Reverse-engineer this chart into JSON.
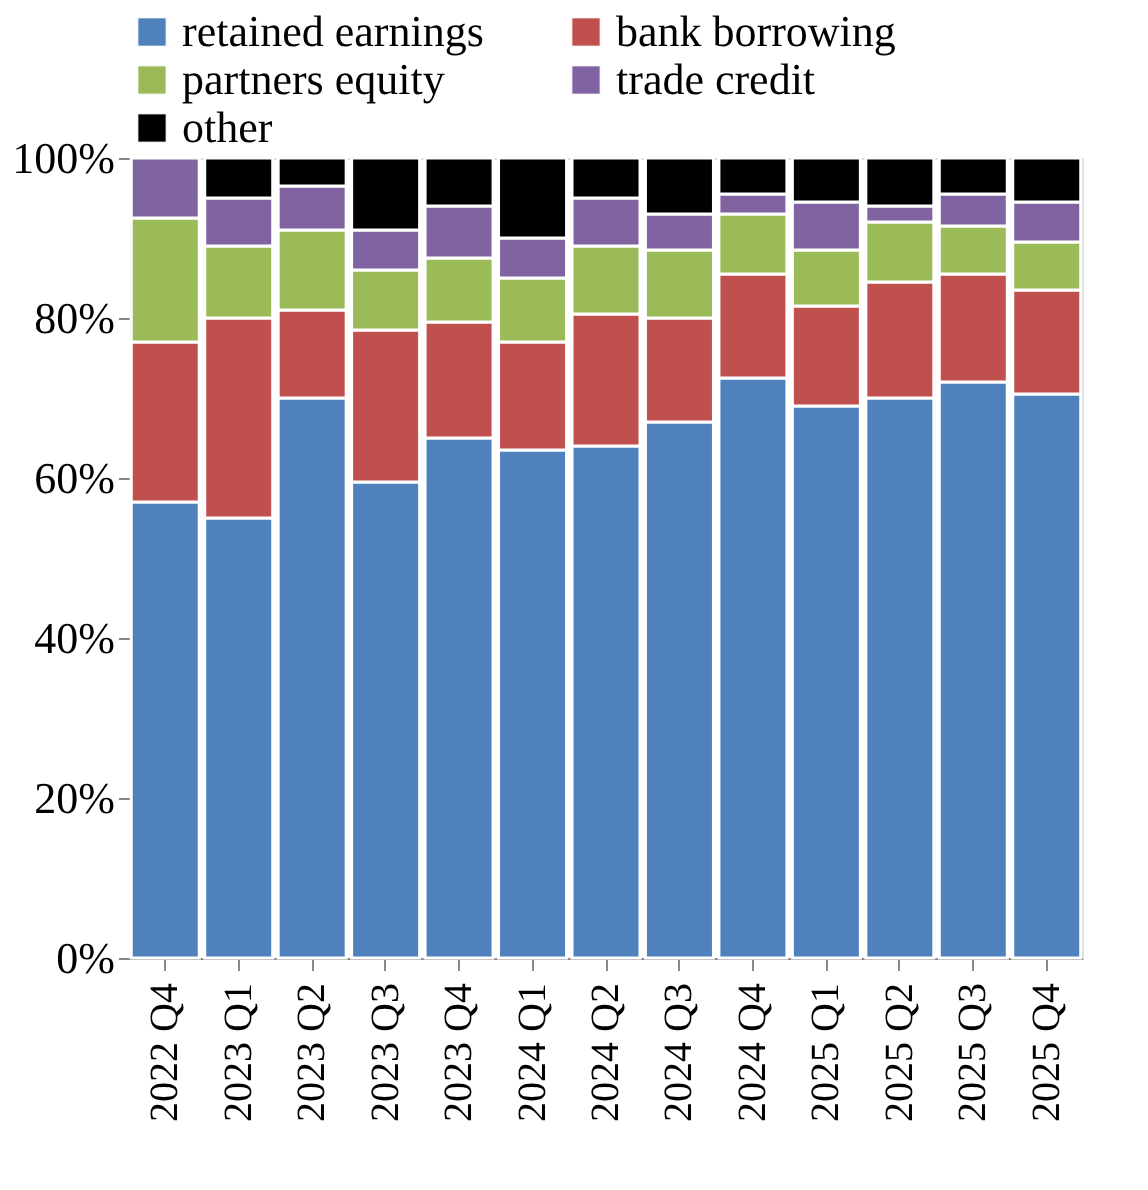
{
  "chart_data": {
    "type": "bar",
    "stacked": true,
    "legend": "top",
    "categories": [
      "2022 Q4",
      "2023 Q1",
      "2023 Q2",
      "2023 Q3",
      "2023 Q4",
      "2024 Q1",
      "2024 Q2",
      "2024 Q3",
      "2024 Q4",
      "2025 Q1",
      "2025 Q2",
      "2025 Q3",
      "2025 Q4"
    ],
    "series": [
      {
        "name": "retained earnings",
        "color": "#4f81bd",
        "values": [
          57,
          55,
          70,
          59.5,
          65,
          63.5,
          64,
          67,
          72.5,
          69,
          70,
          72,
          70.5
        ]
      },
      {
        "name": "bank borrowing",
        "color": "#c0504d",
        "values": [
          20,
          25,
          11,
          19,
          14.5,
          13.5,
          16.5,
          13,
          13,
          12.5,
          14.5,
          13.5,
          13
        ]
      },
      {
        "name": "partners equity",
        "color": "#9bbb59",
        "values": [
          15.5,
          9,
          10,
          7.5,
          8,
          8,
          8.5,
          8.5,
          7.5,
          7,
          7.5,
          6,
          6
        ]
      },
      {
        "name": "trade credit",
        "color": "#8064a2",
        "values": [
          7.5,
          6,
          5.5,
          5,
          6.5,
          5,
          6,
          4.5,
          2.5,
          6,
          2,
          4,
          5
        ]
      },
      {
        "name": "other",
        "color": "#000000",
        "values": [
          0,
          5,
          3.5,
          9,
          6,
          10,
          5,
          7,
          4.5,
          5.5,
          6,
          4.5,
          5.5
        ]
      }
    ],
    "ylim": [
      0,
      100
    ],
    "yticks": [
      {
        "value": 0,
        "label": "0%"
      },
      {
        "value": 20,
        "label": "20%"
      },
      {
        "value": 40,
        "label": "40%"
      },
      {
        "value": 60,
        "label": "60%"
      },
      {
        "value": 80,
        "label": "80%"
      },
      {
        "value": 100,
        "label": "100%"
      }
    ],
    "grid": false
  }
}
